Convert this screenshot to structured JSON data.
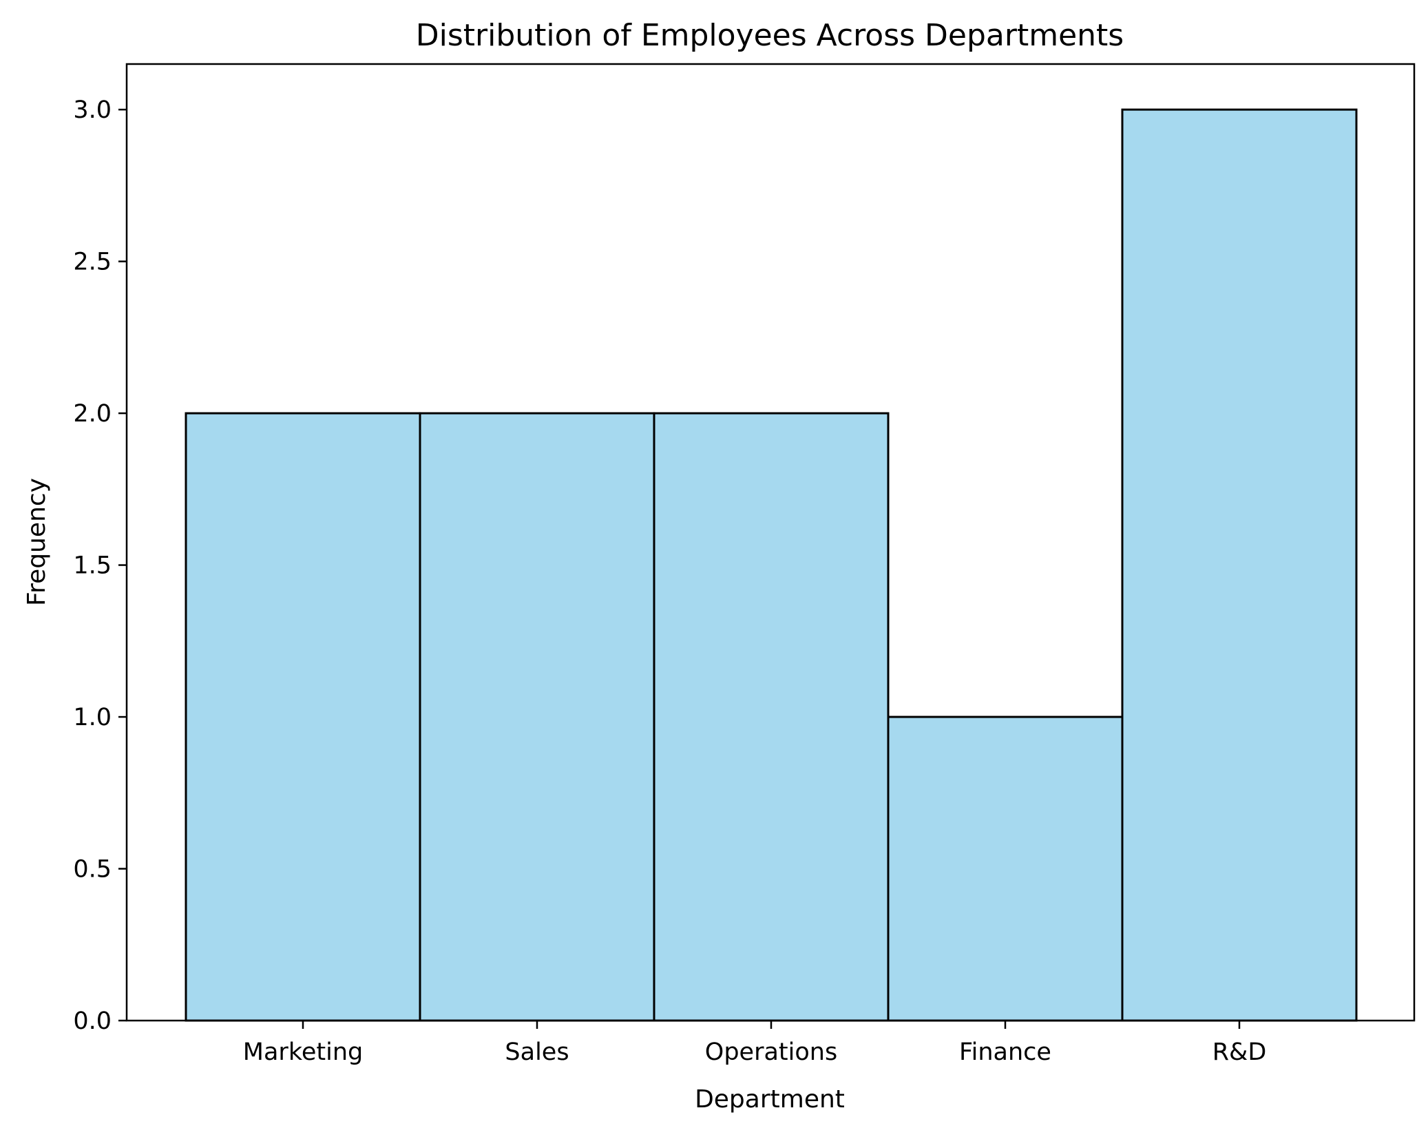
{
  "chart_data": {
    "type": "bar",
    "title": "Distribution of Employees Across Departments",
    "xlabel": "Department",
    "ylabel": "Frequency",
    "categories": [
      "Marketing",
      "Sales",
      "Operations",
      "Finance",
      "R&D"
    ],
    "values": [
      2,
      2,
      2,
      1,
      3
    ],
    "ylim": [
      0,
      3.15
    ],
    "yticks": [
      0.0,
      0.5,
      1.0,
      1.5,
      2.0,
      2.5,
      3.0
    ],
    "ytick_labels": [
      "0.0",
      "0.5",
      "1.0",
      "1.5",
      "2.0",
      "2.5",
      "3.0"
    ],
    "grid": false,
    "legend": "none",
    "colors": {
      "bar_fill": "#a6d9ef",
      "bar_edge": "#000000",
      "axes": "#000000",
      "background": "#ffffff"
    }
  }
}
